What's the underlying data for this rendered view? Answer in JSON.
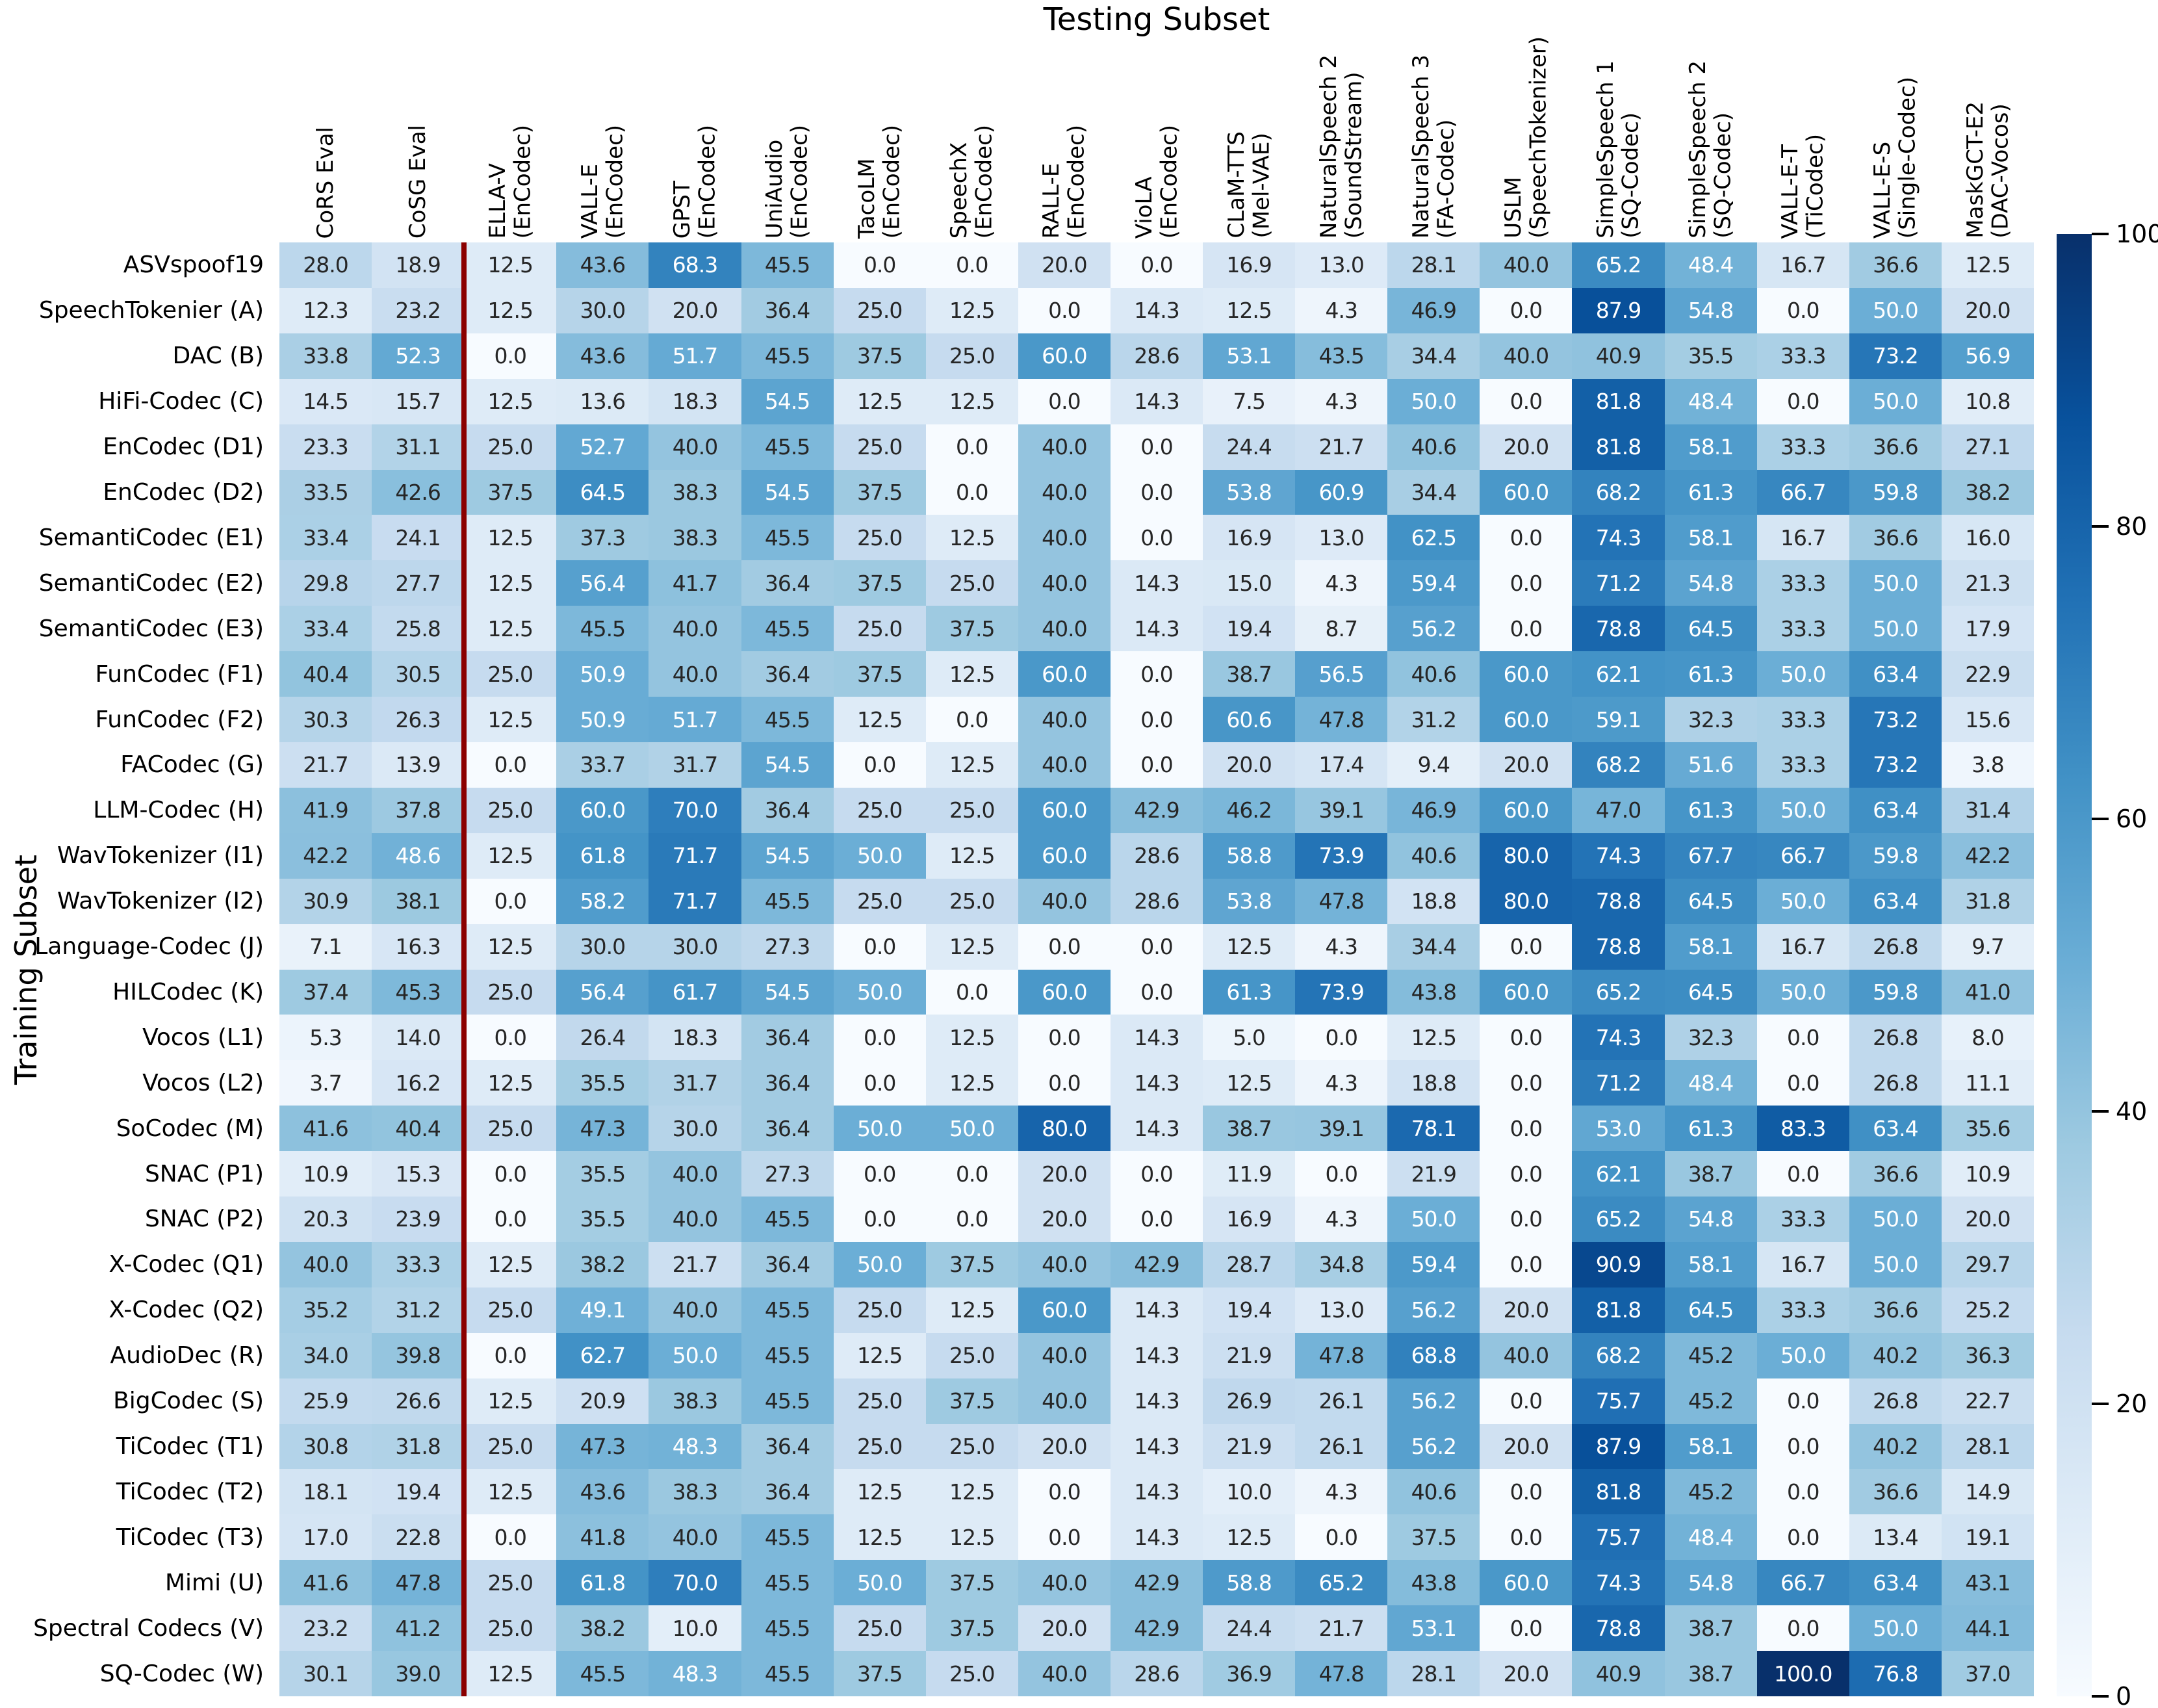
{
  "chart_data": {
    "type": "heatmap",
    "title": "Testing Subset",
    "ylabel": "Training Subset",
    "colormap": "Blues",
    "vmin": 0,
    "vmax": 100,
    "grid": false,
    "annotation_format": "one-decimal",
    "divider": {
      "after_column_index": 2,
      "color": "#8B0000"
    },
    "colorbar": {
      "position": "right",
      "ticks": [
        0,
        20,
        40,
        60,
        80,
        100
      ]
    },
    "colormap_anchors": [
      "#f7fbff",
      "#deebf7",
      "#c6dbef",
      "#9ecae1",
      "#6baed6",
      "#4292c6",
      "#2171b5",
      "#08519c",
      "#08306b"
    ],
    "columns": [
      {
        "name": "CoRS Eval",
        "system": ""
      },
      {
        "name": "CoSG Eval",
        "system": ""
      },
      {
        "name": "ELLA-V",
        "system": "(EnCodec)"
      },
      {
        "name": "VALL-E",
        "system": "(EnCodec)"
      },
      {
        "name": "GPST",
        "system": "(EnCodec)"
      },
      {
        "name": "UniAudio",
        "system": "(EnCodec)"
      },
      {
        "name": "TacoLM",
        "system": "(EnCodec)"
      },
      {
        "name": "SpeechX",
        "system": "(EnCodec)"
      },
      {
        "name": "RALL-E",
        "system": "(EnCodec)"
      },
      {
        "name": "VioLA",
        "system": "(EnCodec)"
      },
      {
        "name": "CLaM-TTS",
        "system": "(Mel-VAE)"
      },
      {
        "name": "NaturalSpeech 2",
        "system": "(SoundStream)"
      },
      {
        "name": "NaturalSpeech 3",
        "system": "(FA-Codec)"
      },
      {
        "name": "USLM",
        "system": "(SpeechTokenizer)"
      },
      {
        "name": "SimpleSpeech 1",
        "system": "(SQ-Codec)"
      },
      {
        "name": "SimpleSpeech 2",
        "system": "(SQ-Codec)"
      },
      {
        "name": "VALL-E-T",
        "system": "(TiCodec)"
      },
      {
        "name": "VALL-E-S",
        "system": "(Single-Codec)"
      },
      {
        "name": "MaskGCT-E2",
        "system": "(DAC-Vocos)"
      }
    ],
    "rows": [
      "ASVspoof19",
      "SpeechTokenier (A)",
      "DAC (B)",
      "HiFi-Codec (C)",
      "EnCodec (D1)",
      "EnCodec (D2)",
      "SemantiCodec (E1)",
      "SemantiCodec (E2)",
      "SemantiCodec (E3)",
      "FunCodec (F1)",
      "FunCodec (F2)",
      "FACodec (G)",
      "LLM-Codec (H)",
      "WavTokenizer (I1)",
      "WavTokenizer (I2)",
      "Language-Codec (J)",
      "HILCodec (K)",
      "Vocos (L1)",
      "Vocos (L2)",
      "SoCodec (M)",
      "SNAC (P1)",
      "SNAC (P2)",
      "X-Codec (Q1)",
      "X-Codec (Q2)",
      "AudioDec (R)",
      "BigCodec (S)",
      "TiCodec (T1)",
      "TiCodec (T2)",
      "TiCodec (T3)",
      "Mimi (U)",
      "Spectral Codecs (V)",
      "SQ-Codec (W)"
    ],
    "values": [
      [
        28.0,
        18.9,
        12.5,
        43.6,
        68.3,
        45.5,
        0.0,
        0.0,
        20.0,
        0.0,
        16.9,
        13.0,
        28.1,
        40.0,
        65.2,
        48.4,
        16.7,
        36.6,
        12.5
      ],
      [
        12.3,
        23.2,
        12.5,
        30.0,
        20.0,
        36.4,
        25.0,
        12.5,
        0.0,
        14.3,
        12.5,
        4.3,
        46.9,
        0.0,
        87.9,
        54.8,
        0.0,
        50.0,
        20.0
      ],
      [
        33.8,
        52.3,
        0.0,
        43.6,
        51.7,
        45.5,
        37.5,
        25.0,
        60.0,
        28.6,
        53.1,
        43.5,
        34.4,
        40.0,
        40.9,
        35.5,
        33.3,
        73.2,
        56.9
      ],
      [
        14.5,
        15.7,
        12.5,
        13.6,
        18.3,
        54.5,
        12.5,
        12.5,
        0.0,
        14.3,
        7.5,
        4.3,
        50.0,
        0.0,
        81.8,
        48.4,
        0.0,
        50.0,
        10.8
      ],
      [
        23.3,
        31.1,
        25.0,
        52.7,
        40.0,
        45.5,
        25.0,
        0.0,
        40.0,
        0.0,
        24.4,
        21.7,
        40.6,
        20.0,
        81.8,
        58.1,
        33.3,
        36.6,
        27.1
      ],
      [
        33.5,
        42.6,
        37.5,
        64.5,
        38.3,
        54.5,
        37.5,
        0.0,
        40.0,
        0.0,
        53.8,
        60.9,
        34.4,
        60.0,
        68.2,
        61.3,
        66.7,
        59.8,
        38.2
      ],
      [
        33.4,
        24.1,
        12.5,
        37.3,
        38.3,
        45.5,
        25.0,
        12.5,
        40.0,
        0.0,
        16.9,
        13.0,
        62.5,
        0.0,
        74.3,
        58.1,
        16.7,
        36.6,
        16.0
      ],
      [
        29.8,
        27.7,
        12.5,
        56.4,
        41.7,
        36.4,
        37.5,
        25.0,
        40.0,
        14.3,
        15.0,
        4.3,
        59.4,
        0.0,
        71.2,
        54.8,
        33.3,
        50.0,
        21.3
      ],
      [
        33.4,
        25.8,
        12.5,
        45.5,
        40.0,
        45.5,
        25.0,
        37.5,
        40.0,
        14.3,
        19.4,
        8.7,
        56.2,
        0.0,
        78.8,
        64.5,
        33.3,
        50.0,
        17.9
      ],
      [
        40.4,
        30.5,
        25.0,
        50.9,
        40.0,
        36.4,
        37.5,
        12.5,
        60.0,
        0.0,
        38.7,
        56.5,
        40.6,
        60.0,
        62.1,
        61.3,
        50.0,
        63.4,
        22.9
      ],
      [
        30.3,
        26.3,
        12.5,
        50.9,
        51.7,
        45.5,
        12.5,
        0.0,
        40.0,
        0.0,
        60.6,
        47.8,
        31.2,
        60.0,
        59.1,
        32.3,
        33.3,
        73.2,
        15.6
      ],
      [
        21.7,
        13.9,
        0.0,
        33.7,
        31.7,
        54.5,
        0.0,
        12.5,
        40.0,
        0.0,
        20.0,
        17.4,
        9.4,
        20.0,
        68.2,
        51.6,
        33.3,
        73.2,
        3.8
      ],
      [
        41.9,
        37.8,
        25.0,
        60.0,
        70.0,
        36.4,
        25.0,
        25.0,
        60.0,
        42.9,
        46.2,
        39.1,
        46.9,
        60.0,
        47.0,
        61.3,
        50.0,
        63.4,
        31.4
      ],
      [
        42.2,
        48.6,
        12.5,
        61.8,
        71.7,
        54.5,
        50.0,
        12.5,
        60.0,
        28.6,
        58.8,
        73.9,
        40.6,
        80.0,
        74.3,
        67.7,
        66.7,
        59.8,
        42.2
      ],
      [
        30.9,
        38.1,
        0.0,
        58.2,
        71.7,
        45.5,
        25.0,
        25.0,
        40.0,
        28.6,
        53.8,
        47.8,
        18.8,
        80.0,
        78.8,
        64.5,
        50.0,
        63.4,
        31.8
      ],
      [
        7.1,
        16.3,
        12.5,
        30.0,
        30.0,
        27.3,
        0.0,
        12.5,
        0.0,
        0.0,
        12.5,
        4.3,
        34.4,
        0.0,
        78.8,
        58.1,
        16.7,
        26.8,
        9.7
      ],
      [
        37.4,
        45.3,
        25.0,
        56.4,
        61.7,
        54.5,
        50.0,
        0.0,
        60.0,
        0.0,
        61.3,
        73.9,
        43.8,
        60.0,
        65.2,
        64.5,
        50.0,
        59.8,
        41.0
      ],
      [
        5.3,
        14.0,
        0.0,
        26.4,
        18.3,
        36.4,
        0.0,
        12.5,
        0.0,
        14.3,
        5.0,
        0.0,
        12.5,
        0.0,
        74.3,
        32.3,
        0.0,
        26.8,
        8.0
      ],
      [
        3.7,
        16.2,
        12.5,
        35.5,
        31.7,
        36.4,
        0.0,
        12.5,
        0.0,
        14.3,
        12.5,
        4.3,
        18.8,
        0.0,
        71.2,
        48.4,
        0.0,
        26.8,
        11.1
      ],
      [
        41.6,
        40.4,
        25.0,
        47.3,
        30.0,
        36.4,
        50.0,
        50.0,
        80.0,
        14.3,
        38.7,
        39.1,
        78.1,
        0.0,
        53.0,
        61.3,
        83.3,
        63.4,
        35.6
      ],
      [
        10.9,
        15.3,
        0.0,
        35.5,
        40.0,
        27.3,
        0.0,
        0.0,
        20.0,
        0.0,
        11.9,
        0.0,
        21.9,
        0.0,
        62.1,
        38.7,
        0.0,
        36.6,
        10.9
      ],
      [
        20.3,
        23.9,
        0.0,
        35.5,
        40.0,
        45.5,
        0.0,
        0.0,
        20.0,
        0.0,
        16.9,
        4.3,
        50.0,
        0.0,
        65.2,
        54.8,
        33.3,
        50.0,
        20.0
      ],
      [
        40.0,
        33.3,
        12.5,
        38.2,
        21.7,
        36.4,
        50.0,
        37.5,
        40.0,
        42.9,
        28.7,
        34.8,
        59.4,
        0.0,
        90.9,
        58.1,
        16.7,
        50.0,
        29.7
      ],
      [
        35.2,
        31.2,
        25.0,
        49.1,
        40.0,
        45.5,
        25.0,
        12.5,
        60.0,
        14.3,
        19.4,
        13.0,
        56.2,
        20.0,
        81.8,
        64.5,
        33.3,
        36.6,
        25.2
      ],
      [
        34.0,
        39.8,
        0.0,
        62.7,
        50.0,
        45.5,
        12.5,
        25.0,
        40.0,
        14.3,
        21.9,
        47.8,
        68.8,
        40.0,
        68.2,
        45.2,
        50.0,
        40.2,
        36.3
      ],
      [
        25.9,
        26.6,
        12.5,
        20.9,
        38.3,
        45.5,
        25.0,
        37.5,
        40.0,
        14.3,
        26.9,
        26.1,
        56.2,
        0.0,
        75.7,
        45.2,
        0.0,
        26.8,
        22.7
      ],
      [
        30.8,
        31.8,
        25.0,
        47.3,
        48.3,
        36.4,
        25.0,
        25.0,
        20.0,
        14.3,
        21.9,
        26.1,
        56.2,
        20.0,
        87.9,
        58.1,
        0.0,
        40.2,
        28.1
      ],
      [
        18.1,
        19.4,
        12.5,
        43.6,
        38.3,
        36.4,
        12.5,
        12.5,
        0.0,
        14.3,
        10.0,
        4.3,
        40.6,
        0.0,
        81.8,
        45.2,
        0.0,
        36.6,
        14.9
      ],
      [
        17.0,
        22.8,
        0.0,
        41.8,
        40.0,
        45.5,
        12.5,
        12.5,
        0.0,
        14.3,
        12.5,
        0.0,
        37.5,
        0.0,
        75.7,
        48.4,
        0.0,
        13.4,
        19.1
      ],
      [
        41.6,
        47.8,
        25.0,
        61.8,
        70.0,
        45.5,
        50.0,
        37.5,
        40.0,
        42.9,
        58.8,
        65.2,
        43.8,
        60.0,
        74.3,
        54.8,
        66.7,
        63.4,
        43.1
      ],
      [
        23.2,
        41.2,
        25.0,
        38.2,
        10.0,
        45.5,
        25.0,
        37.5,
        20.0,
        42.9,
        24.4,
        21.7,
        53.1,
        0.0,
        78.8,
        38.7,
        0.0,
        50.0,
        44.1
      ],
      [
        30.1,
        39.0,
        12.5,
        45.5,
        48.3,
        45.5,
        37.5,
        25.0,
        40.0,
        28.6,
        36.9,
        47.8,
        28.1,
        20.0,
        40.9,
        38.7,
        100.0,
        76.8,
        37.0
      ]
    ]
  }
}
